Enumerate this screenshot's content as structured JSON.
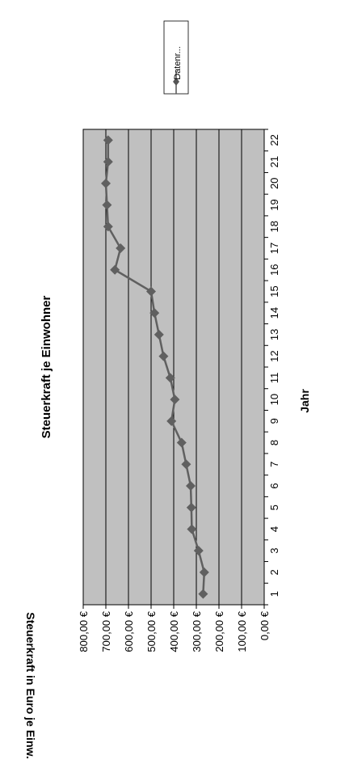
{
  "chart_data": {
    "type": "line",
    "title": "Steuerkraft je Einwohner",
    "xlabel": "Jahr",
    "ylabel": "Steuerkraft in Euro je Einw.",
    "categories": [
      "1",
      "2",
      "3",
      "4",
      "5",
      "6",
      "7",
      "8",
      "9",
      "10",
      "11",
      "12",
      "13",
      "14",
      "15",
      "16",
      "17",
      "18",
      "19",
      "20",
      "21",
      "22"
    ],
    "series": [
      {
        "name": "Datenr...",
        "values": [
          270,
          265,
          290,
          320,
          322,
          325,
          345,
          365,
          410,
          395,
          415,
          445,
          465,
          485,
          500,
          660,
          635,
          690,
          695,
          700,
          690,
          690
        ]
      }
    ],
    "ylim": [
      0,
      800
    ],
    "yticks": [
      "0,00 €",
      "100,00 €",
      "200,00 €",
      "300,00 €",
      "400,00 €",
      "500,00 €",
      "600,00 €",
      "700,00 €",
      "800,00 €"
    ],
    "grid": true,
    "legend_position": "top-right",
    "orientation": "rotated-90",
    "colors": {
      "plot_area": "#c0c0c0",
      "series": "#606060",
      "gridline": "#000000"
    }
  }
}
